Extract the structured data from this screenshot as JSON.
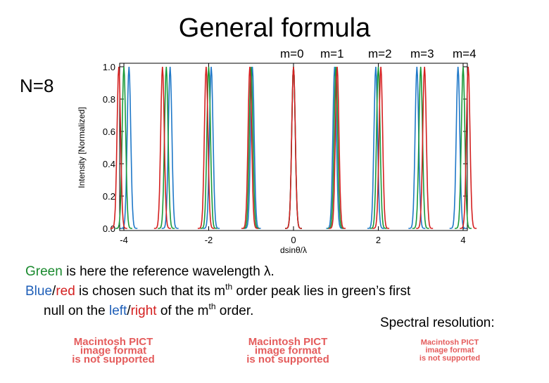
{
  "slide": {
    "title": "General formula",
    "order_labels": [
      "m=0",
      "m=1",
      "m=2",
      "m=3",
      "m=4"
    ],
    "side_label": "N=8",
    "body": [
      [
        {
          "text": "Green",
          "color": "#1a8a2e"
        },
        {
          "text": " is here the reference wavelength λ."
        }
      ],
      [
        {
          "text": "Blue",
          "color": "#1f5fb8"
        },
        {
          "text": "/"
        },
        {
          "text": "red",
          "color": "#d42020"
        },
        {
          "text": " is chosen such that its m"
        },
        {
          "text": "th",
          "sup": true
        },
        {
          "text": " order peak lies in green’s first"
        }
      ],
      [
        {
          "text": "null on the "
        },
        {
          "text": "left",
          "color": "#1f5fb8"
        },
        {
          "text": "/"
        },
        {
          "text": "right",
          "color": "#d42020"
        },
        {
          "text": " of the m"
        },
        {
          "text": "th",
          "sup": true
        },
        {
          "text": " order."
        }
      ]
    ],
    "note": "Spectral resolution:",
    "placeholders": [
      [
        "Macintosh PICT",
        "image format",
        "is not supported"
      ],
      [
        "Macintosh PICT",
        "image format",
        "is not supported"
      ],
      [
        "Macintosh PICT",
        "image format",
        "is not supported"
      ]
    ]
  },
  "chart_data": {
    "type": "peaks",
    "x_label": "dsinθ/λ",
    "y_label": "Intensity [Normalized]",
    "xlim": [
      -4.1,
      4.1
    ],
    "ylim": [
      0,
      1.0
    ],
    "xticks": [
      -4,
      -2,
      0,
      2,
      4
    ],
    "yticks": [
      {
        "value": 0,
        "label": "0.0"
      },
      {
        "value": 0.2,
        "label": "0.2"
      },
      {
        "value": 0.4,
        "label": "0.4"
      },
      {
        "value": 0.6,
        "label": "0.6"
      },
      {
        "value": 0.8,
        "label": "0.8"
      },
      {
        "value": 1.0,
        "label": "1.0"
      }
    ],
    "series": [
      {
        "color": "#1f78c8",
        "x": [
          -3.88,
          -2.91,
          -1.94,
          -0.97,
          0,
          0.97,
          1.94,
          2.91,
          3.88
        ],
        "values": [
          1,
          1,
          1,
          1,
          1,
          1,
          1,
          1,
          1
        ]
      },
      {
        "color": "#1a9a3a",
        "x": [
          -4,
          -3,
          -2,
          -1,
          0,
          1,
          2,
          3,
          4
        ],
        "values": [
          1,
          1,
          1,
          1,
          1,
          1,
          1,
          1,
          1
        ]
      },
      {
        "color": "#d42020",
        "x": [
          -4.12,
          -3.09,
          -2.06,
          -1.03,
          0,
          1.03,
          2.06,
          3.09,
          4.12
        ],
        "values": [
          1,
          1,
          1,
          1,
          1,
          1,
          1,
          1,
          1
        ]
      }
    ]
  }
}
